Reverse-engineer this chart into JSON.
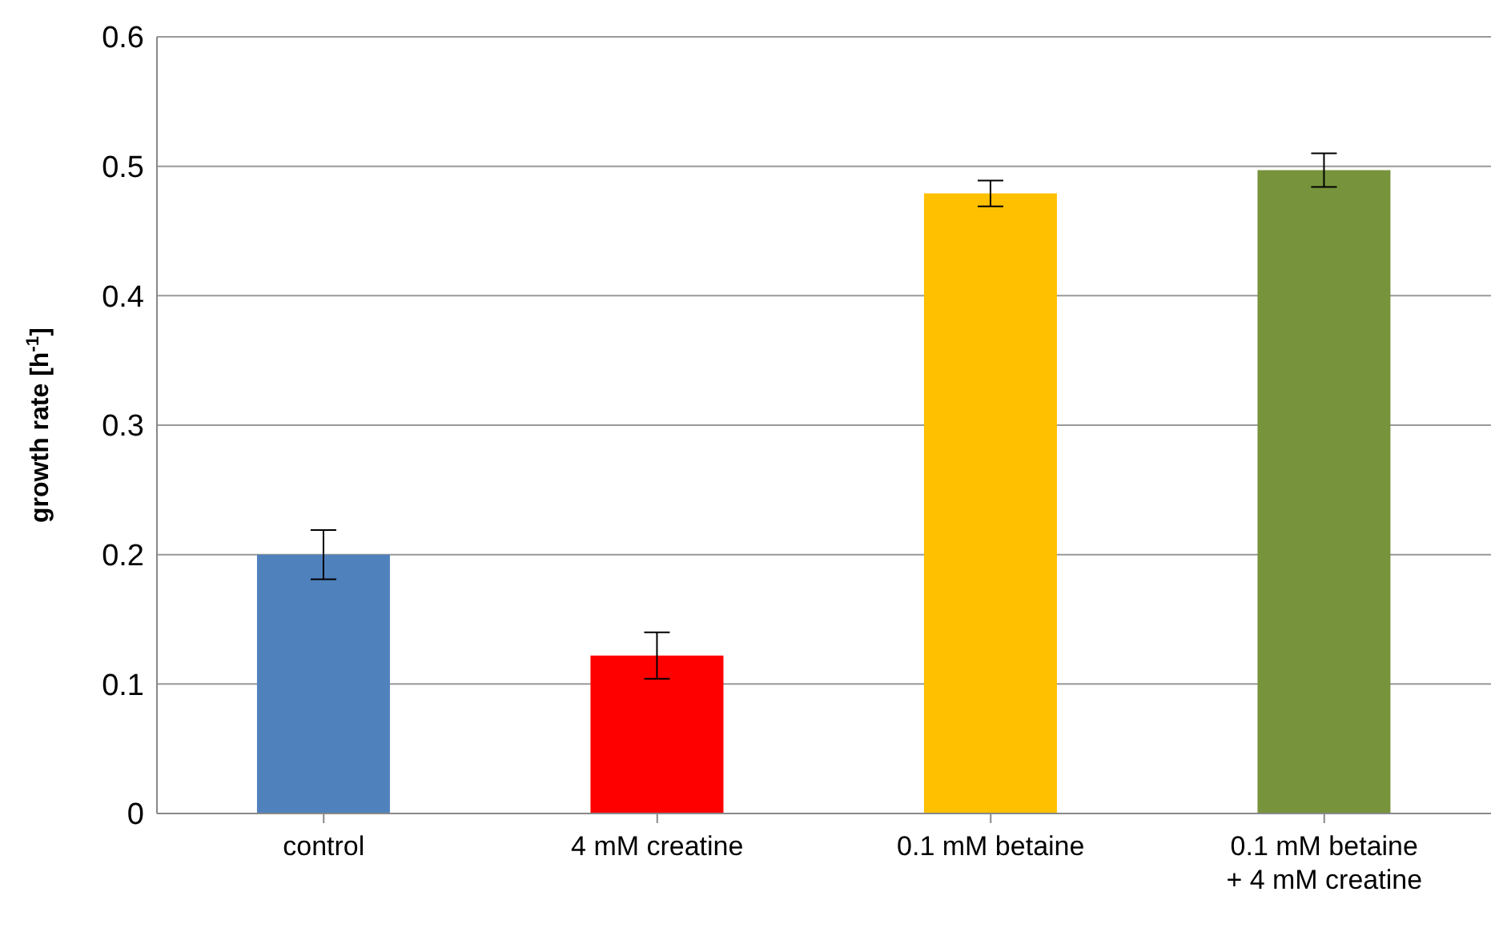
{
  "chart_data": {
    "type": "bar",
    "ylabel": "growth rate [h$^{-1}$]",
    "categories": [
      "control",
      "4 mM creatine",
      "0.1 mM betaine",
      "0.1 mM betaine + 4 mM creatine"
    ],
    "values": [
      0.2,
      0.122,
      0.479,
      0.497
    ],
    "errors": [
      0.019,
      0.018,
      0.01,
      0.013
    ],
    "colors": [
      "#4f81bd",
      "#ff0000",
      "#ffc000",
      "#77933c"
    ],
    "ylim": [
      0,
      0.6
    ],
    "yticks": [
      0,
      0.1,
      0.2,
      0.3,
      0.4,
      0.5,
      0.6
    ],
    "grid": "y",
    "legend": false
  }
}
